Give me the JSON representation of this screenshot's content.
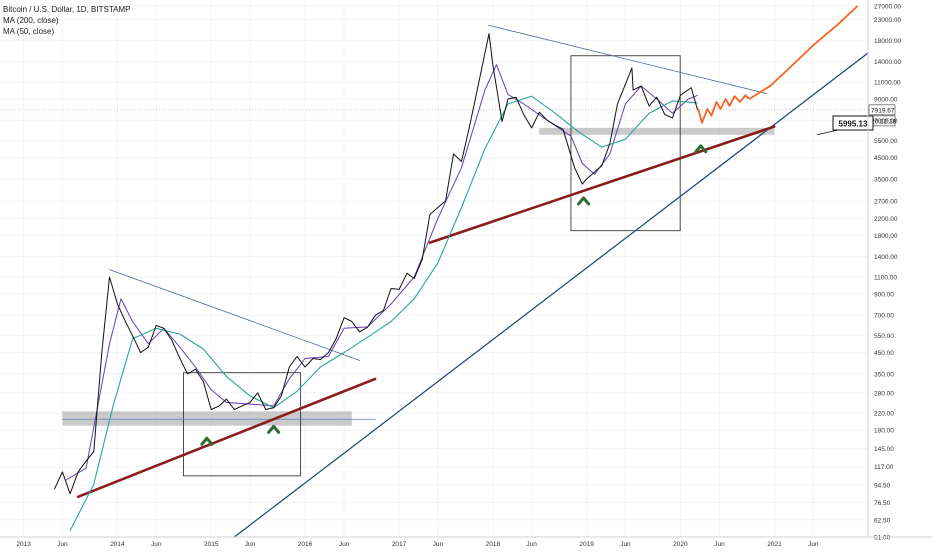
{
  "chart_data": {
    "type": "line",
    "title": "Bitcoin / U.S. Dollar, 1D, BITSTAMP",
    "indicators": [
      "MA (200, close)",
      "MA (50, close)"
    ],
    "y_scale": "log",
    "ylim": [
      51,
      27000
    ],
    "y_ticks": [
      "27000.00",
      "23000.00",
      "18000.00",
      "14000.00",
      "11000.00",
      "9000.00",
      "7000.00",
      "5500.00",
      "4500.00",
      "3500.00",
      "2700.00",
      "2200.00",
      "1800.00",
      "1400.00",
      "1100.00",
      "900.00",
      "700.00",
      "550.00",
      "450.00",
      "350.00",
      "280.00",
      "220.00",
      "180.00",
      "145.00",
      "117.00",
      "94.50",
      "76.50",
      "62.50",
      "51.00"
    ],
    "x_ticks": [
      "2013",
      "Jun",
      "2014",
      "Jun",
      "2015",
      "Jun",
      "2016",
      "Jun",
      "2017",
      "Jun",
      "2018",
      "Jun",
      "2019",
      "Jun",
      "2020",
      "Jun",
      "2021",
      "Jun"
    ],
    "last_price": "7919.67",
    "countdown": "20:22:28",
    "callout_label": "5995.13",
    "colors": {
      "price": "#111111",
      "ma200": "#26a69a",
      "ma50": "#673ab7",
      "trend_blue": "#1c3f7a",
      "support_red": "#8b1a1a",
      "projection": "#f26522",
      "bounce": "#2e6b2e",
      "zone": "#9e9e9e"
    },
    "series": [
      {
        "role": "price",
        "points": [
          [
            "2013-05-01",
            90
          ],
          [
            "2013-06-01",
            110
          ],
          [
            "2013-07-01",
            85
          ],
          [
            "2013-08-01",
            110
          ],
          [
            "2013-09-01",
            125
          ],
          [
            "2013-10-01",
            140
          ],
          [
            "2013-11-01",
            450
          ],
          [
            "2013-12-01",
            1100
          ],
          [
            "2014-01-01",
            800
          ],
          [
            "2014-02-01",
            650
          ],
          [
            "2014-03-01",
            550
          ],
          [
            "2014-04-01",
            450
          ],
          [
            "2014-05-01",
            480
          ],
          [
            "2014-06-01",
            620
          ],
          [
            "2014-07-01",
            600
          ],
          [
            "2014-08-01",
            520
          ],
          [
            "2014-09-01",
            420
          ],
          [
            "2014-10-01",
            350
          ],
          [
            "2014-11-01",
            370
          ],
          [
            "2014-12-01",
            320
          ],
          [
            "2015-01-01",
            230
          ],
          [
            "2015-02-01",
            240
          ],
          [
            "2015-03-01",
            260
          ],
          [
            "2015-04-01",
            230
          ],
          [
            "2015-05-01",
            240
          ],
          [
            "2015-06-01",
            250
          ],
          [
            "2015-07-01",
            280
          ],
          [
            "2015-08-01",
            230
          ],
          [
            "2015-09-01",
            235
          ],
          [
            "2015-10-01",
            270
          ],
          [
            "2015-11-01",
            380
          ],
          [
            "2015-12-01",
            430
          ],
          [
            "2016-01-01",
            380
          ],
          [
            "2016-02-01",
            420
          ],
          [
            "2016-03-01",
            415
          ],
          [
            "2016-04-01",
            450
          ],
          [
            "2016-05-01",
            530
          ],
          [
            "2016-06-01",
            680
          ],
          [
            "2016-07-01",
            650
          ],
          [
            "2016-08-01",
            575
          ],
          [
            "2016-09-01",
            610
          ],
          [
            "2016-10-01",
            700
          ],
          [
            "2016-11-01",
            740
          ],
          [
            "2016-12-01",
            960
          ],
          [
            "2017-01-01",
            950
          ],
          [
            "2017-02-01",
            1150
          ],
          [
            "2017-03-01",
            1080
          ],
          [
            "2017-04-01",
            1350
          ],
          [
            "2017-05-01",
            2300
          ],
          [
            "2017-06-01",
            2500
          ],
          [
            "2017-07-01",
            2700
          ],
          [
            "2017-08-01",
            4700
          ],
          [
            "2017-09-01",
            4300
          ],
          [
            "2017-10-01",
            6400
          ],
          [
            "2017-11-01",
            10000
          ],
          [
            "2017-12-17",
            19500
          ],
          [
            "2018-01-01",
            13500
          ],
          [
            "2018-02-06",
            6900
          ],
          [
            "2018-03-01",
            9000
          ],
          [
            "2018-04-01",
            9200
          ],
          [
            "2018-05-01",
            7500
          ],
          [
            "2018-06-01",
            6400
          ],
          [
            "2018-07-01",
            7700
          ],
          [
            "2018-08-01",
            7000
          ],
          [
            "2018-09-01",
            6600
          ],
          [
            "2018-10-01",
            6300
          ],
          [
            "2018-11-15",
            4000
          ],
          [
            "2018-12-15",
            3300
          ],
          [
            "2019-01-01",
            3500
          ],
          [
            "2019-02-01",
            3800
          ],
          [
            "2019-03-01",
            4100
          ],
          [
            "2019-04-01",
            5300
          ],
          [
            "2019-05-01",
            8500
          ],
          [
            "2019-06-26",
            13000
          ],
          [
            "2019-07-01",
            10000
          ],
          [
            "2019-08-01",
            10500
          ],
          [
            "2019-09-01",
            8300
          ],
          [
            "2019-10-01",
            9200
          ],
          [
            "2019-11-01",
            7500
          ],
          [
            "2019-12-01",
            7200
          ],
          [
            "2020-01-01",
            9400
          ],
          [
            "2020-02-12",
            10300
          ],
          [
            "2020-03-01",
            8500
          ],
          [
            "2020-03-08",
            7919.67
          ]
        ]
      },
      {
        "role": "ma50",
        "points": [
          [
            "2013-06-15",
            100
          ],
          [
            "2013-09-01",
            115
          ],
          [
            "2013-12-01",
            500
          ],
          [
            "2014-01-15",
            850
          ],
          [
            "2014-03-01",
            650
          ],
          [
            "2014-05-01",
            500
          ],
          [
            "2014-07-01",
            600
          ],
          [
            "2014-09-01",
            480
          ],
          [
            "2014-11-01",
            380
          ],
          [
            "2015-01-01",
            290
          ],
          [
            "2015-03-01",
            250
          ],
          [
            "2015-06-01",
            245
          ],
          [
            "2015-09-01",
            240
          ],
          [
            "2015-11-01",
            330
          ],
          [
            "2016-01-01",
            420
          ],
          [
            "2016-04-01",
            430
          ],
          [
            "2016-06-01",
            600
          ],
          [
            "2016-09-01",
            610
          ],
          [
            "2016-12-01",
            800
          ],
          [
            "2017-03-01",
            1100
          ],
          [
            "2017-06-01",
            2200
          ],
          [
            "2017-09-01",
            4000
          ],
          [
            "2017-12-01",
            10000
          ],
          [
            "2018-01-15",
            13500
          ],
          [
            "2018-03-01",
            9500
          ],
          [
            "2018-05-01",
            8500
          ],
          [
            "2018-08-01",
            7000
          ],
          [
            "2018-11-01",
            5800
          ],
          [
            "2018-12-15",
            4200
          ],
          [
            "2019-02-01",
            3700
          ],
          [
            "2019-04-01",
            4700
          ],
          [
            "2019-06-01",
            8500
          ],
          [
            "2019-08-01",
            10500
          ],
          [
            "2019-10-01",
            9000
          ],
          [
            "2019-12-01",
            7600
          ],
          [
            "2020-02-01",
            9000
          ],
          [
            "2020-03-08",
            9400
          ]
        ]
      },
      {
        "role": "ma200",
        "points": [
          [
            "2013-07-01",
            55
          ],
          [
            "2013-10-01",
            95
          ],
          [
            "2013-12-15",
            240
          ],
          [
            "2014-03-01",
            530
          ],
          [
            "2014-06-01",
            600
          ],
          [
            "2014-09-01",
            560
          ],
          [
            "2014-12-01",
            470
          ],
          [
            "2015-03-01",
            340
          ],
          [
            "2015-06-01",
            270
          ],
          [
            "2015-09-01",
            235
          ],
          [
            "2015-12-01",
            285
          ],
          [
            "2016-03-01",
            380
          ],
          [
            "2016-06-01",
            450
          ],
          [
            "2016-09-01",
            540
          ],
          [
            "2016-12-01",
            650
          ],
          [
            "2017-03-01",
            850
          ],
          [
            "2017-06-01",
            1300
          ],
          [
            "2017-09-01",
            2500
          ],
          [
            "2017-12-01",
            5000
          ],
          [
            "2018-03-01",
            8500
          ],
          [
            "2018-06-01",
            9300
          ],
          [
            "2018-09-01",
            7600
          ],
          [
            "2018-12-01",
            6100
          ],
          [
            "2019-03-01",
            5100
          ],
          [
            "2019-06-01",
            5600
          ],
          [
            "2019-09-01",
            7600
          ],
          [
            "2019-12-01",
            8800
          ],
          [
            "2020-03-08",
            8600
          ]
        ]
      }
    ],
    "annotations": {
      "projection": [
        [
          "2020-03-10",
          8000
        ],
        [
          "2020-03-25",
          6800
        ],
        [
          "2020-04-15",
          8000
        ],
        [
          "2020-05-01",
          7400
        ],
        [
          "2020-05-20",
          8700
        ],
        [
          "2020-06-05",
          8000
        ],
        [
          "2020-06-25",
          9000
        ],
        [
          "2020-07-10",
          8300
        ],
        [
          "2020-07-30",
          9300
        ],
        [
          "2020-08-20",
          8700
        ],
        [
          "2020-09-10",
          9400
        ],
        [
          "2020-09-25",
          9000
        ]
      ],
      "projection_curve": [
        [
          "2020-12-15",
          10500
        ],
        [
          "2021-03-01",
          13000
        ],
        [
          "2021-06-01",
          17000
        ],
        [
          "2021-09-01",
          21500
        ],
        [
          "2021-11-20",
          27000
        ]
      ],
      "trend_blue_ascending": [
        [
          "2015-04-01",
          51
        ],
        [
          "2021-12-31",
          15500
        ]
      ],
      "support_red_2014": [
        [
          "2013-08-01",
          82
        ],
        [
          "2016-09-30",
          330
        ]
      ],
      "support_red_2018": [
        [
          "2017-05-01",
          1650
        ],
        [
          "2020-12-31",
          6500
        ]
      ],
      "resistance_2014": [
        [
          "2013-12-01",
          1200
        ],
        [
          "2016-08-01",
          410
        ]
      ],
      "resistance_2018": [
        [
          "2017-12-15",
          21500
        ],
        [
          "2020-12-01",
          9600
        ]
      ],
      "horizontal_2015": [
        [
          "2013-06-01",
          205
        ],
        [
          "2016-10-01",
          205
        ]
      ],
      "zone_2015": [
        [
          "2013-06-01",
          225
        ],
        [
          "2016-07-01",
          190
        ]
      ],
      "zone_2019": [
        [
          "2018-07-01",
          6400
        ],
        [
          "2020-12-31",
          5900
        ]
      ],
      "box_2015": [
        [
          "2014-09-15",
          355
        ],
        [
          "2015-12-15",
          105
        ]
      ],
      "box_2019": [
        [
          "2018-11-01",
          15000
        ],
        [
          "2019-12-31",
          1900
        ]
      ],
      "bounce_markers": [
        [
          "2014-12-15",
          158
        ],
        [
          "2015-09-01",
          182
        ],
        [
          "2018-12-20",
          2700
        ],
        [
          "2020-03-20",
          5000
        ]
      ]
    }
  }
}
